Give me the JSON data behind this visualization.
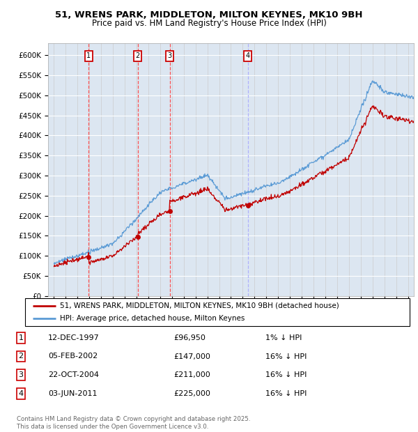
{
  "title1": "51, WRENS PARK, MIDDLETON, MILTON KEYNES, MK10 9BH",
  "title2": "Price paid vs. HM Land Registry's House Price Index (HPI)",
  "ylim": [
    0,
    630000
  ],
  "yticks": [
    0,
    50000,
    100000,
    150000,
    200000,
    250000,
    300000,
    350000,
    400000,
    450000,
    500000,
    550000,
    600000
  ],
  "ytick_labels": [
    "£0",
    "£50K",
    "£100K",
    "£150K",
    "£200K",
    "£250K",
    "£300K",
    "£350K",
    "£400K",
    "£450K",
    "£500K",
    "£550K",
    "£600K"
  ],
  "hpi_color": "#5b9bd5",
  "price_color": "#c00000",
  "vline_color_solid": "#ff0000",
  "vline_color_dash": "#9090ff",
  "background_color": "#dce6f1",
  "purchases": [
    {
      "label": "1",
      "date_num": 1997.95,
      "price": 96950,
      "vline_style": "solid"
    },
    {
      "label": "2",
      "date_num": 2002.09,
      "price": 147000,
      "vline_style": "solid"
    },
    {
      "label": "3",
      "date_num": 2004.81,
      "price": 211000,
      "vline_style": "solid"
    },
    {
      "label": "4",
      "date_num": 2011.42,
      "price": 225000,
      "vline_style": "dashed"
    }
  ],
  "legend_entries": [
    {
      "label": "51, WRENS PARK, MIDDLETON, MILTON KEYNES, MK10 9BH (detached house)",
      "color": "#c00000"
    },
    {
      "label": "HPI: Average price, detached house, Milton Keynes",
      "color": "#5b9bd5"
    }
  ],
  "table_rows": [
    {
      "num": "1",
      "date": "12-DEC-1997",
      "price": "£96,950",
      "hpi": "1% ↓ HPI"
    },
    {
      "num": "2",
      "date": "05-FEB-2002",
      "price": "£147,000",
      "hpi": "16% ↓ HPI"
    },
    {
      "num": "3",
      "date": "22-OCT-2004",
      "price": "£211,000",
      "hpi": "16% ↓ HPI"
    },
    {
      "num": "4",
      "date": "03-JUN-2011",
      "price": "£225,000",
      "hpi": "16% ↓ HPI"
    }
  ],
  "footer": "Contains HM Land Registry data © Crown copyright and database right 2025.\nThis data is licensed under the Open Government Licence v3.0.",
  "xlim_start": 1994.5,
  "xlim_end": 2025.5
}
